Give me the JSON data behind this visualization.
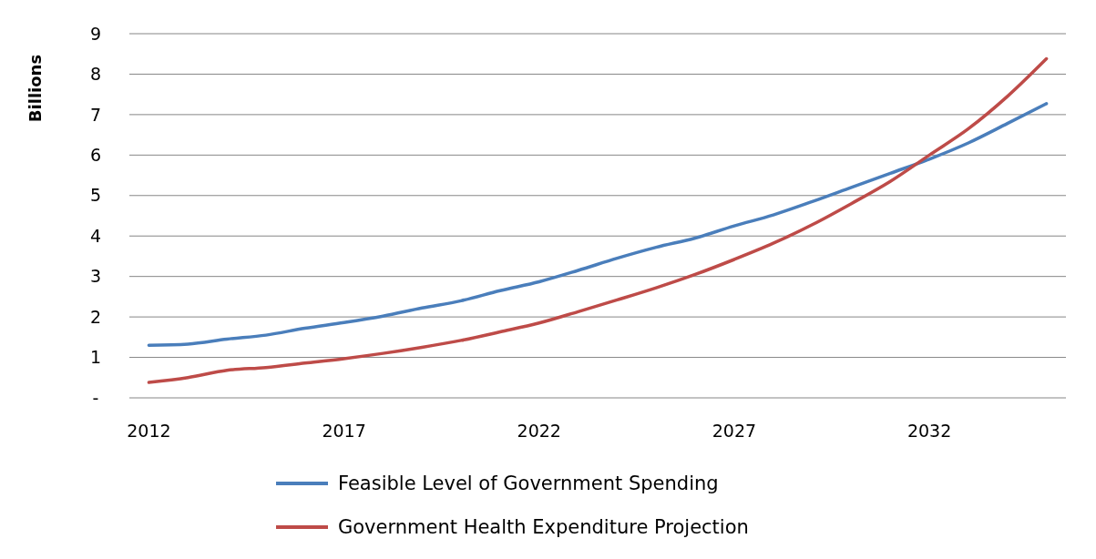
{
  "chart_data": {
    "type": "line",
    "ylabel": "Billions",
    "x": [
      2012,
      2013,
      2014,
      2015,
      2016,
      2017,
      2018,
      2019,
      2020,
      2021,
      2022,
      2023,
      2024,
      2025,
      2026,
      2027,
      2028,
      2029,
      2030,
      2031,
      2032,
      2033,
      2034,
      2035
    ],
    "series": [
      {
        "name": "Feasible Level of Government Spending",
        "color": "#4a7ebb",
        "values": [
          1.3,
          1.33,
          1.45,
          1.55,
          1.72,
          1.86,
          2.02,
          2.22,
          2.4,
          2.65,
          2.87,
          3.15,
          3.45,
          3.72,
          3.95,
          4.25,
          4.52,
          4.85,
          5.2,
          5.55,
          5.9,
          6.3,
          6.78,
          7.27
        ]
      },
      {
        "name": "Government Health Expenditure Projection",
        "color": "#be4b48",
        "values": [
          0.38,
          0.5,
          0.68,
          0.75,
          0.86,
          0.97,
          1.1,
          1.25,
          1.42,
          1.63,
          1.85,
          2.13,
          2.42,
          2.72,
          3.05,
          3.42,
          3.82,
          4.28,
          4.8,
          5.35,
          6.0,
          6.65,
          7.45,
          8.38
        ]
      }
    ],
    "xlim": [
      2011.5,
      2035.5
    ],
    "xticks": [
      2012,
      2017,
      2022,
      2027,
      2032
    ],
    "ylim": [
      0,
      9
    ],
    "yticks": [
      {
        "value": 0,
        "label": "-"
      },
      1,
      2,
      3,
      4,
      5,
      6,
      7,
      8,
      9
    ],
    "grid": "y",
    "legend": "bottom",
    "marker": "none",
    "line_style": "solid"
  }
}
